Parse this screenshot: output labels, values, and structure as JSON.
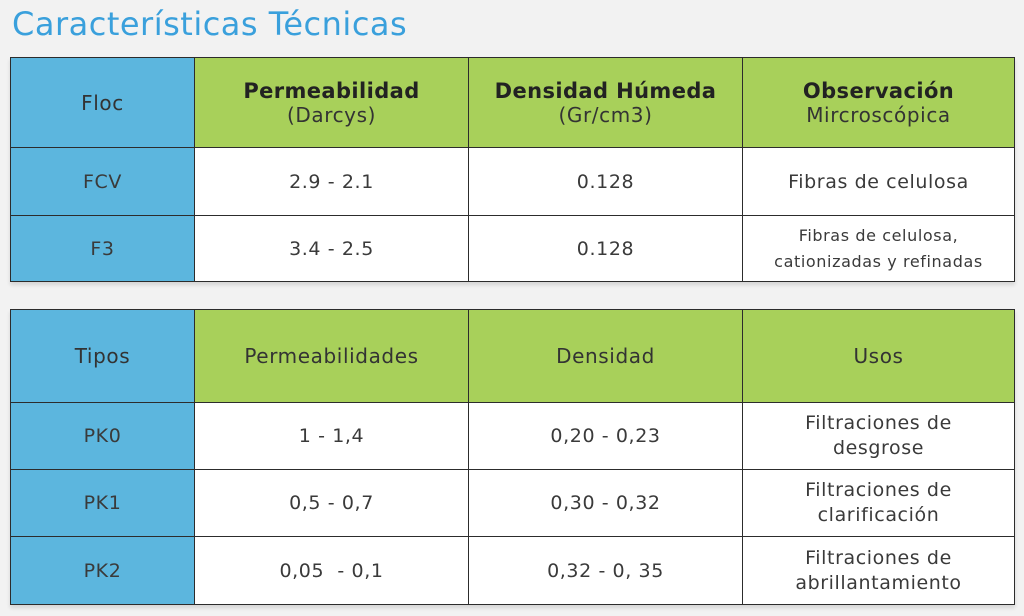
{
  "title": "Características Técnicas",
  "floc_table": {
    "headers": {
      "floc": "Floc",
      "permeabilidad": "Permeabilidad",
      "permeabilidad_unit": "(Darcys)",
      "densidad": "Densidad Húmeda",
      "densidad_unit": "(Gr/cm3)",
      "observacion": "Observación",
      "observacion_sub": "Mircroscópica"
    },
    "rows": [
      {
        "name": "FCV",
        "permeabilidad": "2.9 - 2.1",
        "densidad": "0.128",
        "observacion_lines": [
          "Fibras de celulosa"
        ]
      },
      {
        "name": "F3",
        "permeabilidad": "3.4 - 2.5",
        "densidad": "0.128",
        "observacion_lines": [
          "Fibras de celulosa,",
          "cationizadas y refinadas"
        ]
      }
    ]
  },
  "tipos_table": {
    "headers": {
      "tipos": "Tipos",
      "permeabilidades": "Permeabilidades",
      "densidad": "Densidad",
      "usos": "Usos"
    },
    "rows": [
      {
        "name": "PK0",
        "permeabilidades": "1 - 1,4",
        "densidad": "0,20 - 0,23",
        "usos_lines": [
          "Filtraciones de",
          "desgrose"
        ]
      },
      {
        "name": "PK1",
        "permeabilidades": "0,5 - 0,7",
        "densidad": "0,30 - 0,32",
        "usos_lines": [
          "Filtraciones de",
          "clarificación"
        ]
      },
      {
        "name": "PK2",
        "permeabilidades": "0,05  - 0,1",
        "densidad": "0,32 - 0, 35",
        "usos_lines": [
          "Filtraciones de",
          "abrillantamiento"
        ]
      }
    ]
  },
  "colors": {
    "title": "#3aa0dc",
    "first_column": "#5cb6de",
    "header": "#a8d05a",
    "body": "#ffffff",
    "background": "#f2f2f2",
    "border": "#2c2c2c"
  }
}
